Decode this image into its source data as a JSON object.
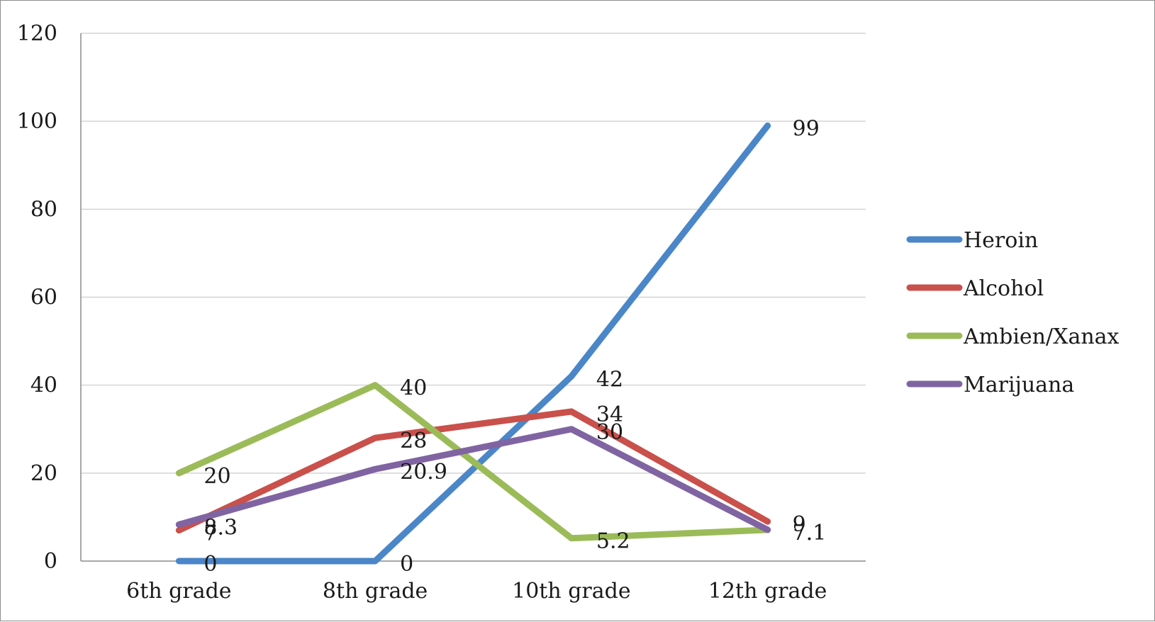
{
  "chart_data": {
    "type": "line",
    "categories": [
      "6th grade",
      "8th grade",
      "10th grade",
      "12th grade"
    ],
    "series": [
      {
        "name": "Heroin",
        "values": [
          0,
          0,
          42,
          99
        ],
        "color": "#4a86c8"
      },
      {
        "name": "Alcohol",
        "values": [
          7,
          28,
          34,
          9
        ],
        "color": "#c9504b"
      },
      {
        "name": "Ambien/Xanax",
        "values": [
          20,
          40,
          5.2,
          7.1
        ],
        "color": "#9bbb59"
      },
      {
        "name": "Marijuana",
        "values": [
          8.3,
          20.9,
          30,
          7.1
        ],
        "color": "#8064a2"
      }
    ],
    "ylim": [
      0,
      120
    ],
    "yticks": [
      0,
      20,
      40,
      60,
      80,
      100,
      120
    ],
    "grid": true,
    "legend": "right"
  }
}
